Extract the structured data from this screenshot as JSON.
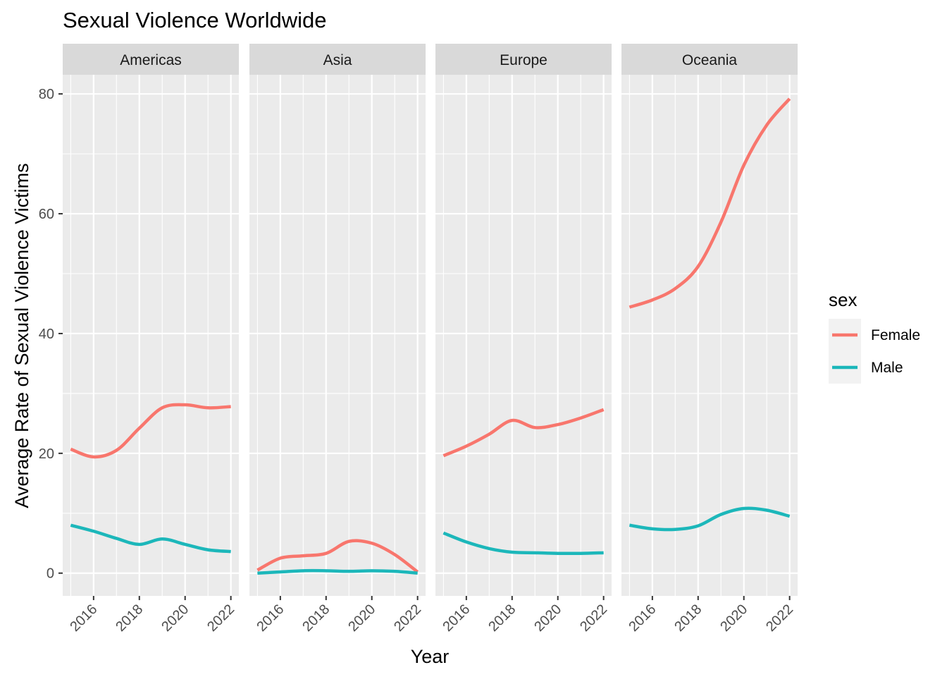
{
  "chart_data": {
    "type": "line",
    "title": "Sexual Violence Worldwide",
    "xlabel": "Year",
    "ylabel": "Average Rate of Sexual Violence Victims",
    "facets": [
      "Americas",
      "Asia",
      "Europe",
      "Oceania"
    ],
    "x": [
      2015,
      2016,
      2017,
      2018,
      2019,
      2020,
      2021,
      2022
    ],
    "x_ticks": [
      2016,
      2018,
      2020,
      2022
    ],
    "y_ticks": [
      0,
      20,
      40,
      60,
      80
    ],
    "xlim": [
      2014.65,
      2022.35
    ],
    "ylim": [
      -3.8,
      83.2
    ],
    "grid": true,
    "legend": {
      "title": "sex",
      "position": "right",
      "entries": [
        "Female",
        "Male"
      ]
    },
    "colors": {
      "Female": "#F8766D",
      "Male": "#1CB7BA"
    },
    "panels": [
      {
        "name": "Americas",
        "series": [
          {
            "name": "Female",
            "values": [
              20.7,
              19.4,
              20.5,
              24.2,
              27.6,
              28.1,
              27.6,
              27.8
            ]
          },
          {
            "name": "Male",
            "values": [
              8.0,
              7.0,
              5.8,
              4.8,
              5.7,
              4.8,
              3.9,
              3.6
            ]
          }
        ]
      },
      {
        "name": "Asia",
        "series": [
          {
            "name": "Female",
            "values": [
              0.5,
              2.5,
              2.9,
              3.3,
              5.3,
              5.0,
              3.1,
              0.2
            ]
          },
          {
            "name": "Male",
            "values": [
              0.0,
              0.2,
              0.4,
              0.4,
              0.3,
              0.4,
              0.3,
              0.0
            ]
          }
        ]
      },
      {
        "name": "Europe",
        "series": [
          {
            "name": "Female",
            "values": [
              19.6,
              21.2,
              23.2,
              25.5,
              24.3,
              24.8,
              25.9,
              27.3
            ]
          },
          {
            "name": "Male",
            "values": [
              6.7,
              5.2,
              4.1,
              3.5,
              3.4,
              3.3,
              3.3,
              3.4
            ]
          }
        ]
      },
      {
        "name": "Oceania",
        "series": [
          {
            "name": "Female",
            "values": [
              44.4,
              45.6,
              47.5,
              51.2,
              58.6,
              68.1,
              74.8,
              79.2
            ]
          },
          {
            "name": "Male",
            "values": [
              8.0,
              7.4,
              7.3,
              7.9,
              9.8,
              10.8,
              10.5,
              9.5
            ]
          }
        ]
      }
    ]
  }
}
